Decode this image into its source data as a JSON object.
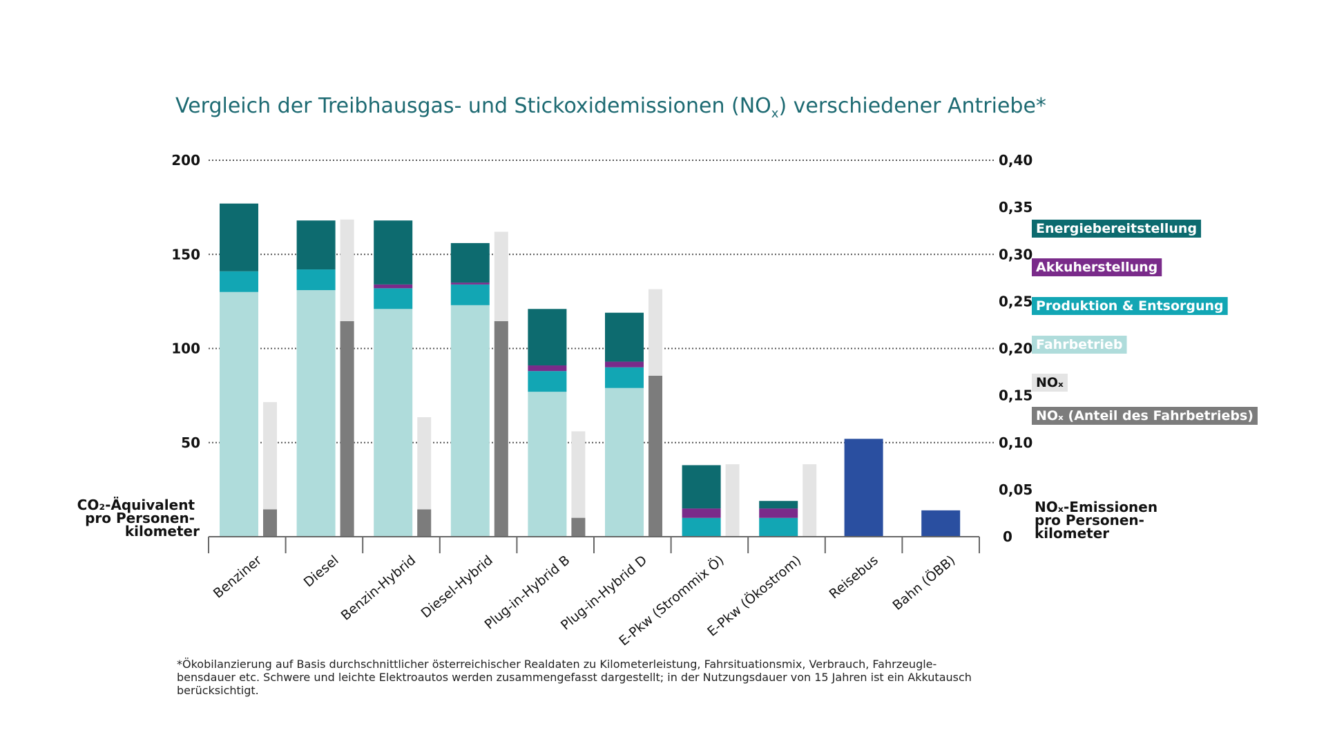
{
  "chart_data": {
    "type": "bar",
    "title_main": "Vergleich der Treibhausgas- und Stickoxidemissionen (NO",
    "title_sub": "x",
    "title_end": ") verschiedener Antriebe*",
    "categories": [
      "Benziner",
      "Diesel",
      "Benzin-Hybrid",
      "Diesel-Hybrid",
      "Plug-in-Hybrid B",
      "Plug-in-Hybrid D",
      "E-Pkw (Strommix Ö)",
      "E-Pkw (Ökostrom)",
      "Reisebus",
      "Bahn (ÖBB)"
    ],
    "left_axis": {
      "label_lines": [
        "CO₂-Äquivalent",
        "pro Personen-",
        "kilometer"
      ],
      "ylim": [
        0,
        200
      ],
      "ticks": [
        "0",
        "50",
        "100",
        "150",
        "200"
      ]
    },
    "right_axis": {
      "label_lines": [
        "NOₓ-Emissionen",
        "pro Personen-",
        "kilometer"
      ],
      "ylim": [
        0,
        0.4
      ],
      "ticks": [
        "0",
        "0,05",
        "0,10",
        "0,15",
        "0,20",
        "0,25",
        "0,30",
        "0,35",
        "0,40"
      ]
    },
    "co2_series": [
      {
        "name": "Fahrbetrieb",
        "color": "#afdcdb",
        "values": [
          130,
          131,
          121,
          123,
          77,
          79,
          0,
          0,
          0,
          0
        ]
      },
      {
        "name": "Produktion & Entsorgung",
        "color": "#12a6b4",
        "values": [
          11,
          11,
          11,
          11,
          11,
          11,
          10,
          10,
          0,
          0
        ]
      },
      {
        "name": "Akkuherstellung",
        "color": "#7a2b8a",
        "values": [
          0,
          0,
          2,
          1,
          3,
          3,
          5,
          5,
          0,
          0
        ]
      },
      {
        "name": "Energiebereitstellung",
        "color": "#0d6b6f",
        "values": [
          36,
          26,
          34,
          21,
          30,
          26,
          23,
          4,
          0,
          0
        ]
      },
      {
        "name": "Reisebus / Bahn",
        "color": "#2a4fa0",
        "values": [
          0,
          0,
          0,
          0,
          0,
          0,
          0,
          0,
          52,
          14
        ]
      }
    ],
    "nox_series": [
      {
        "name": "NOₓ",
        "color": "#e4e4e4",
        "values": [
          0.143,
          0.337,
          0.127,
          0.324,
          0.112,
          0.263,
          0.077,
          0.077,
          0,
          0
        ]
      },
      {
        "name": "NOₓ (Anteil des Fahrbetriebs)",
        "color": "#7c7c7c",
        "values": [
          0.029,
          0.229,
          0.029,
          0.229,
          0.02,
          0.171,
          0,
          0,
          0,
          0
        ]
      }
    ],
    "legend": [
      {
        "label": "Energiebereitstellung",
        "bg": "#0d6b6f",
        "fg": "#ffffff"
      },
      {
        "label": "Akkuherstellung",
        "bg": "#7a2b8a",
        "fg": "#ffffff"
      },
      {
        "label": "Produktion & Entsorgung",
        "bg": "#12a6b4",
        "fg": "#ffffff"
      },
      {
        "label": "Fahrbetrieb",
        "bg": "#afdcdb",
        "fg": "#ffffff"
      },
      {
        "label": "NOₓ",
        "bg": "#e4e4e4",
        "fg": "#111111"
      },
      {
        "label": "NOₓ (Anteil des Fahrbetriebs)",
        "bg": "#7c7c7c",
        "fg": "#ffffff"
      }
    ],
    "legend_position": "right",
    "grid": "dotted horizontal",
    "footnote_lines": [
      "*Ökobilanzierung auf Basis durchschnittlicher österreichischer Realdaten zu Kilometerleistung, Fahrsituationsmix, Verbrauch, Fahrzeugle-",
      "bensdauer etc. Schwere und leichte Elektroautos werden zusammengefasst dargestellt; in der Nutzungsdauer von 15 Jahren ist ein Akkutausch",
      "berücksichtigt."
    ]
  }
}
